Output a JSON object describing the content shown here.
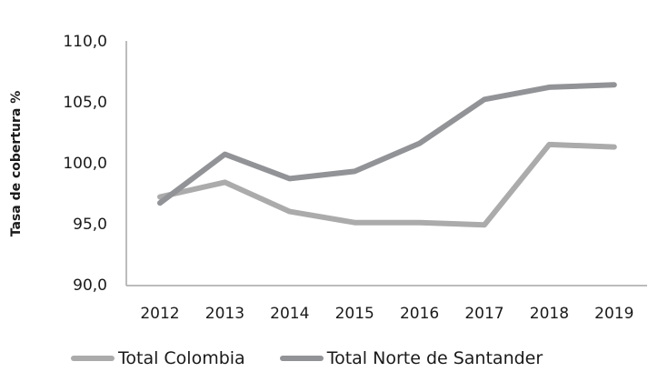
{
  "chart_data": {
    "type": "line",
    "title": "",
    "xlabel": "",
    "ylabel": "Tasa de cobertura %",
    "categories": [
      "2012",
      "2013",
      "2014",
      "2015",
      "2016",
      "2017",
      "2018",
      "2019"
    ],
    "ylim": [
      90,
      110
    ],
    "yticks": [
      "90,0",
      "95,0",
      "100,0",
      "105,0",
      "110,0"
    ],
    "grid": false,
    "legend_position": "bottom",
    "series": [
      {
        "name": "Total Colombia",
        "color": "#ababab",
        "values": [
          97.2,
          98.4,
          96.0,
          95.1,
          95.1,
          94.9,
          101.5,
          101.3
        ]
      },
      {
        "name": "Total Norte de Santander",
        "color": "#929397",
        "values": [
          96.7,
          100.7,
          98.7,
          99.3,
          101.6,
          105.2,
          106.2,
          106.4
        ]
      }
    ]
  },
  "legend": {
    "items": [
      {
        "label": "Total Colombia",
        "color": "#ababab"
      },
      {
        "label": "Total Norte de Santander",
        "color": "#929397"
      }
    ]
  }
}
